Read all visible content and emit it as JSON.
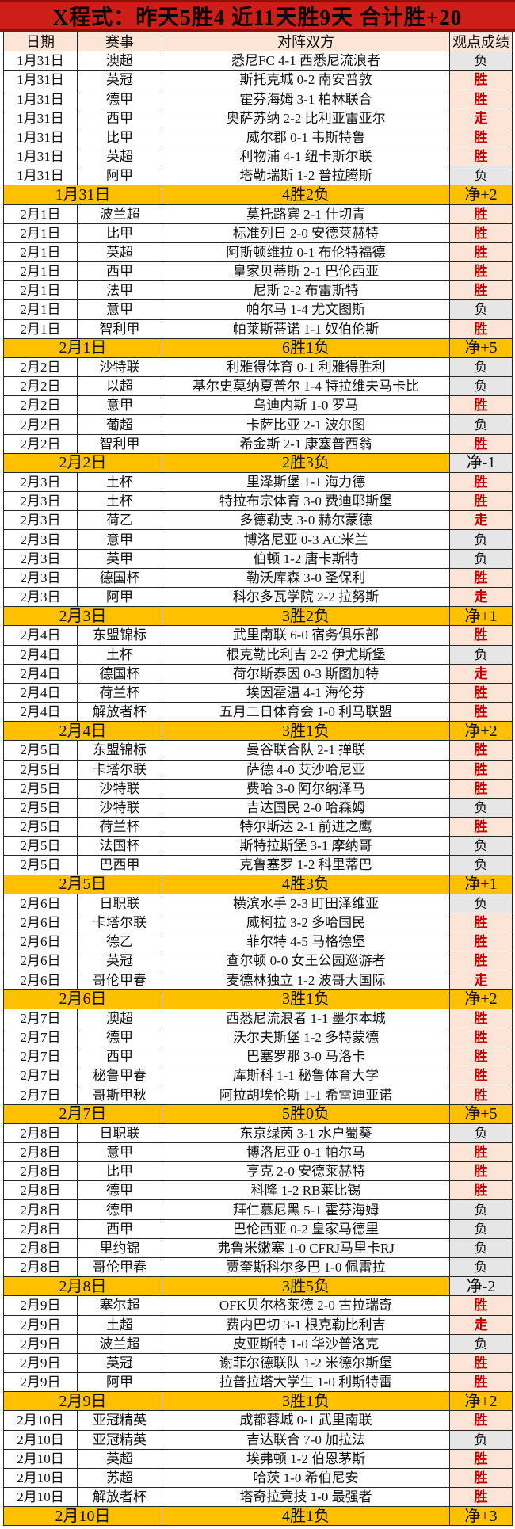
{
  "title": "X程式：昨天5胜4  近11天胜9天  合计胜+20",
  "columns": [
    "日期",
    "赛事",
    "对阵双方",
    "观点成绩"
  ],
  "colors": {
    "title_bg": "#cd1e19",
    "header_bg": "#fce4d6",
    "win_bg": "#fce4d6",
    "win_text": "#c00000",
    "loss_bg": "#e7e6e6",
    "summary_bg": "#ffc000",
    "net_negative_bg": "#e7e6e6"
  },
  "groups": [
    {
      "date": "1月31日",
      "matches": [
        {
          "league": "澳超",
          "match": "悉尼FC 4-1 西悉尼流浪者",
          "result": "负"
        },
        {
          "league": "英冠",
          "match": "斯托克城 0-2 南安普敦",
          "result": "胜"
        },
        {
          "league": "德甲",
          "match": "霍芬海姆 3-1 柏林联合",
          "result": "胜"
        },
        {
          "league": "西甲",
          "match": "奥萨苏纳 2-2 比利亚雷亚尔",
          "result": "走"
        },
        {
          "league": "比甲",
          "match": "威尔郡 0-1 韦斯特鲁",
          "result": "胜"
        },
        {
          "league": "英超",
          "match": "利物浦 4-1 纽卡斯尔联",
          "result": "胜"
        },
        {
          "league": "阿甲",
          "match": "塔勒瑞斯 1-2 普拉腾斯",
          "result": "负"
        }
      ],
      "summary": "4胜2负",
      "net": "净+2"
    },
    {
      "date": "2月1日",
      "matches": [
        {
          "league": "波兰超",
          "match": "莫托路宾 2-1 什切青",
          "result": "胜"
        },
        {
          "league": "比甲",
          "match": "标准列日 2-0 安德莱赫特",
          "result": "胜"
        },
        {
          "league": "英超",
          "match": "阿斯顿维拉 0-1 布伦特福德",
          "result": "胜"
        },
        {
          "league": "西甲",
          "match": "皇家贝蒂斯 2-1 巴伦西亚",
          "result": "胜"
        },
        {
          "league": "法甲",
          "match": "尼斯 2-2 布雷斯特",
          "result": "胜"
        },
        {
          "league": "意甲",
          "match": "帕尔马 1-4 尤文图斯",
          "result": "负"
        },
        {
          "league": "智利甲",
          "match": "帕莱斯蒂诺 1-1 奴伯伦斯",
          "result": "胜"
        }
      ],
      "summary": "6胜1负",
      "net": "净+5"
    },
    {
      "date": "2月2日",
      "matches": [
        {
          "league": "沙特联",
          "match": "利雅得体育 0-1 利雅得胜利",
          "result": "负"
        },
        {
          "league": "以超",
          "match": "基尔史莫纳夏普尔 1-4 特拉维夫马卡比",
          "result": "负"
        },
        {
          "league": "意甲",
          "match": "乌迪内斯 1-0 罗马",
          "result": "胜"
        },
        {
          "league": "葡超",
          "match": "卡萨比亚 2-1 波尔图",
          "result": "负"
        },
        {
          "league": "智利甲",
          "match": "希金斯 2-1 康塞普西翁",
          "result": "胜"
        }
      ],
      "summary": "2胜3负",
      "net": "净-1"
    },
    {
      "date": "2月3日",
      "matches": [
        {
          "league": "土杯",
          "match": "里泽斯堡 1-1 海力德",
          "result": "胜"
        },
        {
          "league": "土杯",
          "match": "特拉布宗体育 3-0 费迪耶斯堡",
          "result": "胜"
        },
        {
          "league": "荷乙",
          "match": "多德勒支 3-0 赫尔蒙德",
          "result": "走"
        },
        {
          "league": "意甲",
          "match": "博洛尼亚 0-3 AC米兰",
          "result": "负"
        },
        {
          "league": "英甲",
          "match": "伯顿 1-2 唐卡斯特",
          "result": "负"
        },
        {
          "league": "德国杯",
          "match": "勒沃库森 3-0 圣保利",
          "result": "胜"
        },
        {
          "league": "阿甲",
          "match": "科尔多瓦学院 2-2 拉努斯",
          "result": "走"
        }
      ],
      "summary": "3胜2负",
      "net": "净+1"
    },
    {
      "date": "2月4日",
      "matches": [
        {
          "league": "东盟锦标",
          "match": "武里南联 6-0 宿务俱乐部",
          "result": "胜"
        },
        {
          "league": "土杯",
          "match": "根克勒比利吉 2-2 伊尤斯堡",
          "result": "负"
        },
        {
          "league": "德国杯",
          "match": "荷尔斯泰因 0-3 斯图加特",
          "result": "走"
        },
        {
          "league": "荷兰杯",
          "match": "埃因霍温 4-1 海伦芬",
          "result": "胜"
        },
        {
          "league": "解放者杯",
          "match": "五月二日体育会 1-0 利马联盟",
          "result": "胜"
        }
      ],
      "summary": "3胜1负",
      "net": "净+2"
    },
    {
      "date": "2月5日",
      "matches": [
        {
          "league": "东盟锦标",
          "match": "曼谷联合队 2-1 掸联",
          "result": "胜"
        },
        {
          "league": "卡塔尔联",
          "match": "萨德 4-0 艾沙哈尼亚",
          "result": "胜"
        },
        {
          "league": "沙特联",
          "match": "费哈 3-0 阿尔纳泽马",
          "result": "胜"
        },
        {
          "league": "沙特联",
          "match": "吉达国民 2-0 哈森姆",
          "result": "负"
        },
        {
          "league": "荷兰杯",
          "match": "特尔斯达 2-1 前进之鹰",
          "result": "胜"
        },
        {
          "league": "法国杯",
          "match": "斯特拉斯堡 3-1 摩纳哥",
          "result": "负"
        },
        {
          "league": "巴西甲",
          "match": "克鲁塞罗 1-2 科里蒂巴",
          "result": "负"
        }
      ],
      "summary": "4胜3负",
      "net": "净+1"
    },
    {
      "date": "2月6日",
      "matches": [
        {
          "league": "日职联",
          "match": "横滨水手 2-3 町田泽维亚",
          "result": "负"
        },
        {
          "league": "卡塔尔联",
          "match": "威柯拉 3-2 多哈国民",
          "result": "胜"
        },
        {
          "league": "德乙",
          "match": "菲尔特 4-5 马格德堡",
          "result": "胜"
        },
        {
          "league": "英冠",
          "match": "查尔顿 0-0 女王公园巡游者",
          "result": "胜"
        },
        {
          "league": "哥伦甲春",
          "match": "麦德林独立 1-2 波哥大国际",
          "result": "走"
        }
      ],
      "summary": "3胜1负",
      "net": "净+2"
    },
    {
      "date": "2月7日",
      "matches": [
        {
          "league": "澳超",
          "match": "西悉尼流浪者 1-1 墨尔本城",
          "result": "胜"
        },
        {
          "league": "德甲",
          "match": "沃尔夫斯堡 1-2 多特蒙德",
          "result": "胜"
        },
        {
          "league": "西甲",
          "match": "巴塞罗那 3-0 马洛卡",
          "result": "胜"
        },
        {
          "league": "秘鲁甲春",
          "match": "库斯科 1-1 秘鲁体育大学",
          "result": "胜"
        },
        {
          "league": "哥斯甲秋",
          "match": "阿拉胡埃伦斯 1-1 希雷迪亚诺",
          "result": "胜"
        }
      ],
      "summary": "5胜0负",
      "net": "净+5"
    },
    {
      "date": "2月8日",
      "matches": [
        {
          "league": "日职联",
          "match": "东京绿茵 3-1 水户蜀葵",
          "result": "负"
        },
        {
          "league": "意甲",
          "match": "博洛尼亚 0-1 帕尔马",
          "result": "胜"
        },
        {
          "league": "比甲",
          "match": "亨克 2-0 安德莱赫特",
          "result": "胜"
        },
        {
          "league": "德甲",
          "match": "科隆 1-2 RB莱比锡",
          "result": "胜"
        },
        {
          "league": "德甲",
          "match": "拜仁慕尼黑 5-1 霍芬海姆",
          "result": "负"
        },
        {
          "league": "西甲",
          "match": "巴伦西亚 0-2 皇家马德里",
          "result": "负"
        },
        {
          "league": "里约锦",
          "match": "弗鲁米嫩塞 1-0 CFRJ马里卡RJ",
          "result": "负"
        },
        {
          "league": "哥伦甲春",
          "match": "贾奎斯科尔多巴 1-0 佩雷拉",
          "result": "负"
        }
      ],
      "summary": "3胜5负",
      "net": "净-2"
    },
    {
      "date": "2月9日",
      "matches": [
        {
          "league": "塞尔超",
          "match": "OFK贝尔格莱德 2-0 古拉瑞奇",
          "result": "胜"
        },
        {
          "league": "土超",
          "match": "费内巴切 3-1 根克勒比利吉",
          "result": "走"
        },
        {
          "league": "波兰超",
          "match": "皮亚斯特 1-0 华沙普洛克",
          "result": "负"
        },
        {
          "league": "英冠",
          "match": "谢菲尔德联队 1-2 米德尔斯堡",
          "result": "胜"
        },
        {
          "league": "阿甲",
          "match": "拉普拉塔大学生 1-0 利斯特雷",
          "result": "胜"
        }
      ],
      "summary": "3胜1负",
      "net": "净+2"
    },
    {
      "date": "2月10日",
      "matches": [
        {
          "league": "亚冠精英",
          "match": "成都蓉城 0-1 武里南联",
          "result": "胜"
        },
        {
          "league": "亚冠精英",
          "match": "吉达联合 7-0 加拉法",
          "result": "负"
        },
        {
          "league": "英超",
          "match": "埃弗顿 1-2 伯恩茅斯",
          "result": "胜"
        },
        {
          "league": "苏超",
          "match": "哈茨 1-0 希伯尼安",
          "result": "胜"
        },
        {
          "league": "解放者杯",
          "match": "塔奇拉竞技 1-0 最强者",
          "result": "胜"
        }
      ],
      "summary": "4胜1负",
      "net": "净+3"
    }
  ]
}
